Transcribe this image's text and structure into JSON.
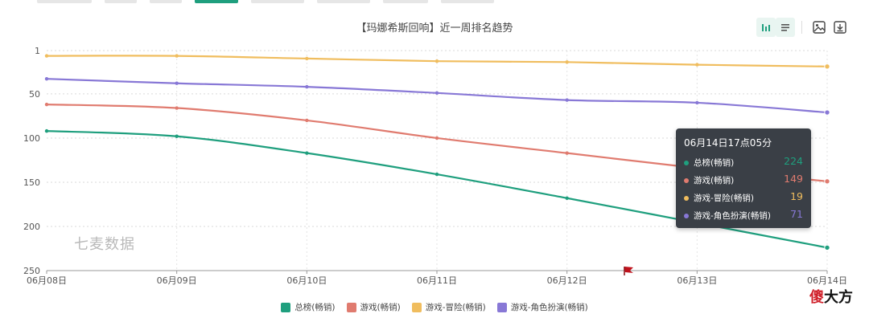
{
  "chart_data": {
    "type": "line",
    "title": "【玛娜希斯回响】近一周排名趋势",
    "categories": [
      "06月08日",
      "06月09日",
      "06月10日",
      "06月11日",
      "06月12日",
      "06月13日",
      "06月14日"
    ],
    "y_axis": {
      "inverse": true,
      "min": 1,
      "max": 250,
      "ticks": [
        1,
        50,
        100,
        150,
        200,
        250
      ],
      "grid": "dashed"
    },
    "series": [
      {
        "name": "总榜(畅销)",
        "color": "#1f9f7e",
        "values": [
          92,
          98,
          117,
          141,
          168,
          196,
          224
        ]
      },
      {
        "name": "游戏(畅销)",
        "color": "#e07b6f",
        "values": [
          62,
          66,
          80,
          100,
          117,
          134,
          149
        ]
      },
      {
        "name": "游戏-冒险(畅销)",
        "color": "#f0bd5e",
        "values": [
          7,
          7,
          10,
          13,
          14,
          17,
          19
        ]
      },
      {
        "name": "游戏-角色扮演(畅销)",
        "color": "#8878d6",
        "values": [
          33,
          38,
          42,
          49,
          57,
          60,
          71
        ]
      }
    ],
    "legend_position": "bottom"
  },
  "tooltip": {
    "title": "06月14日17点05分",
    "rows": [
      {
        "name": "总榜(畅销)",
        "value": "224",
        "color": "#1f9f7e"
      },
      {
        "name": "游戏(畅销)",
        "value": "149",
        "color": "#e07b6f"
      },
      {
        "name": "游戏-冒险(畅销)",
        "value": "19",
        "color": "#f0bd5e"
      },
      {
        "name": "游戏-角色扮演(畅销)",
        "value": "71",
        "color": "#8878d6"
      }
    ]
  },
  "watermark": "七麦数据",
  "brand_stamp": {
    "part1": "傻",
    "part2": "大方",
    "color1": "#d0212b",
    "color2": "#111111"
  },
  "toolbar": {
    "icons": [
      "bar-chart-icon",
      "list-icon",
      "image-download-icon",
      "download-icon"
    ]
  }
}
